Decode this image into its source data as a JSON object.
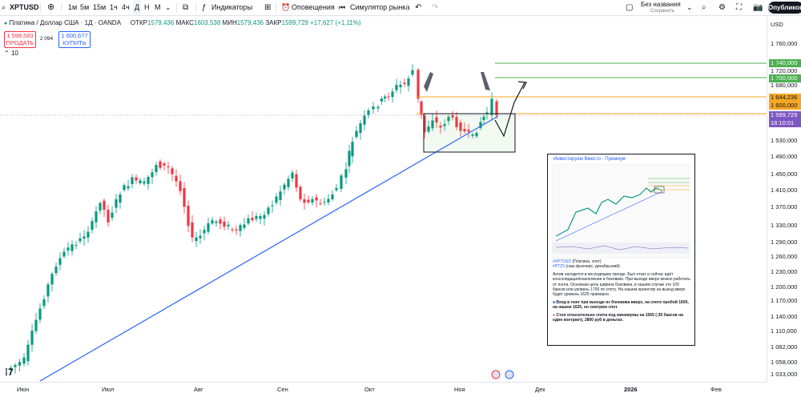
{
  "toolbar": {
    "symbol": "XPTUSD",
    "timeframes": [
      "1м",
      "5м",
      "15м",
      "1ч",
      "4ч",
      "Д",
      "Н",
      "М"
    ],
    "active_timeframe": "Д",
    "indicators_label": "Индикаторы",
    "alerts_label": "Оповещения",
    "replay_label": "Симулятор рынка",
    "layout_name": "Без названия",
    "layout_status": "Сохранить",
    "publish_label": "Опубликова"
  },
  "legend": {
    "title": "Платина / Доллар США · 1Д · OANDA",
    "open_label": "ОТКР",
    "open": "1579,436",
    "high_label": "МАКС",
    "high": "1603,538",
    "low_label": "МИН",
    "low": "1579,436",
    "close_label": "ЗАКР",
    "close": "1599,729",
    "change": "+17,627 (+1,11%)"
  },
  "trade": {
    "sell_price": "1 598,583",
    "sell_label": "ПРОДАТЬ",
    "spread": "2 094",
    "buy_price": "1 600,677",
    "buy_label": "КУПИТЬ"
  },
  "indicator_count": "10",
  "price_axis": {
    "currency": "USD",
    "labels": [
      "1 760,000",
      "1 720,000",
      "1 680,000",
      "1 530,000",
      "1 490,000",
      "1 450,000",
      "1 410,000",
      "1 370,000",
      "1 330,000",
      "1 290,000",
      "1 260,000",
      "1 230,000",
      "1 200,000",
      "1 170,000",
      "1 140,000",
      "1 110,000",
      "1 082,000",
      "1 058,000",
      "1 033,000"
    ],
    "tags": [
      {
        "text": "1 740,000",
        "color": "#4caf50"
      },
      {
        "text": "1 700,000",
        "color": "#4caf50"
      },
      {
        "text": "1 644,236",
        "color": "#f5a623"
      },
      {
        "text": "1 600,000",
        "color": "#f5a623"
      },
      {
        "text": "1 599,729",
        "color": "#7e57c2"
      },
      {
        "text": "18:10:01",
        "color": "#7e57c2"
      }
    ]
  },
  "time_axis": [
    "Июн",
    "Июл",
    "Авг",
    "Сен",
    "Окт",
    "Ноя",
    "Дек",
    "2026",
    "Фев"
  ],
  "popup": {
    "title": "Инвестируем Вместо - Премиум",
    "tag_line1": "#XPTUSD",
    "tag_line1_desc": "(Платина, спот)",
    "tag_line2": "#PTZ5",
    "tag_line2_desc": "(наш фьючерс, декабрьский)",
    "para1": "Актив находится в восходящем тренде. Был откат и сейчас идёт консолидация/накопление в боковике. При выходе вверх можно работать от лонга. Основная цель ширина боковика, в нашем случае это 100 баксов или уровень 1700 по споту. На нашем ориентир на выход вверх будет уровень 1625 примерно.",
    "para2": "Вход в лонг при выходе из боковика вверх, на споте пробой 1600, на нашем 1625, но смотрим спот.",
    "para3": "Стоп относительно спота под минимумы на 1565 (-35 баксов на один контракт), 2800 руб в деньгах."
  },
  "colors": {
    "up": "#089981",
    "down": "#f23645",
    "trendline": "#2962ff",
    "green_level": "#4caf50",
    "orange_level": "#f5a623",
    "current_price": "#7e57c2"
  }
}
